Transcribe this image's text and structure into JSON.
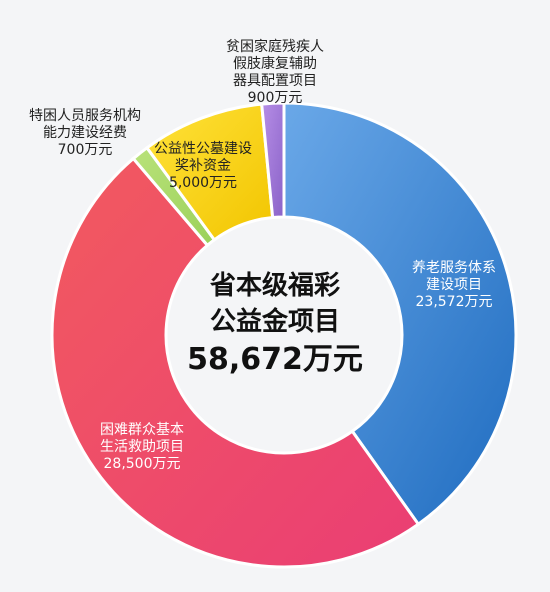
{
  "chart_data": {
    "type": "pie",
    "title": [
      "省本级福彩",
      "公益金项目"
    ],
    "total_label": "58,672万元",
    "slices": [
      {
        "name": "养老服务体系\n建设项目",
        "value": 23572,
        "value_label": "23,572万元",
        "color": "#1f6cc0",
        "color_light": "#6aa8e8"
      },
      {
        "name": "困难群众基本\n生活救助项目",
        "value": 28500,
        "value_label": "28,500万元",
        "color": "#ea3e74",
        "color_light": "#f25a5f"
      },
      {
        "name": "特困人员服务机构\n能力建设经费",
        "value": 700,
        "value_label": "700万元",
        "color": "#9bd15a",
        "color_light": "#b9e27a"
      },
      {
        "name": "公益性公墓建设\n奖补资金",
        "value": 5000,
        "value_label": "5,000万元",
        "color": "#f2c500",
        "color_light": "#ffe23a"
      },
      {
        "name": "贫困家庭残疾人\n假肢康复辅助\n器具配置项目",
        "value": 900,
        "value_label": "900万元",
        "color": "#8a62c8",
        "color_light": "#b68ee6"
      }
    ]
  }
}
